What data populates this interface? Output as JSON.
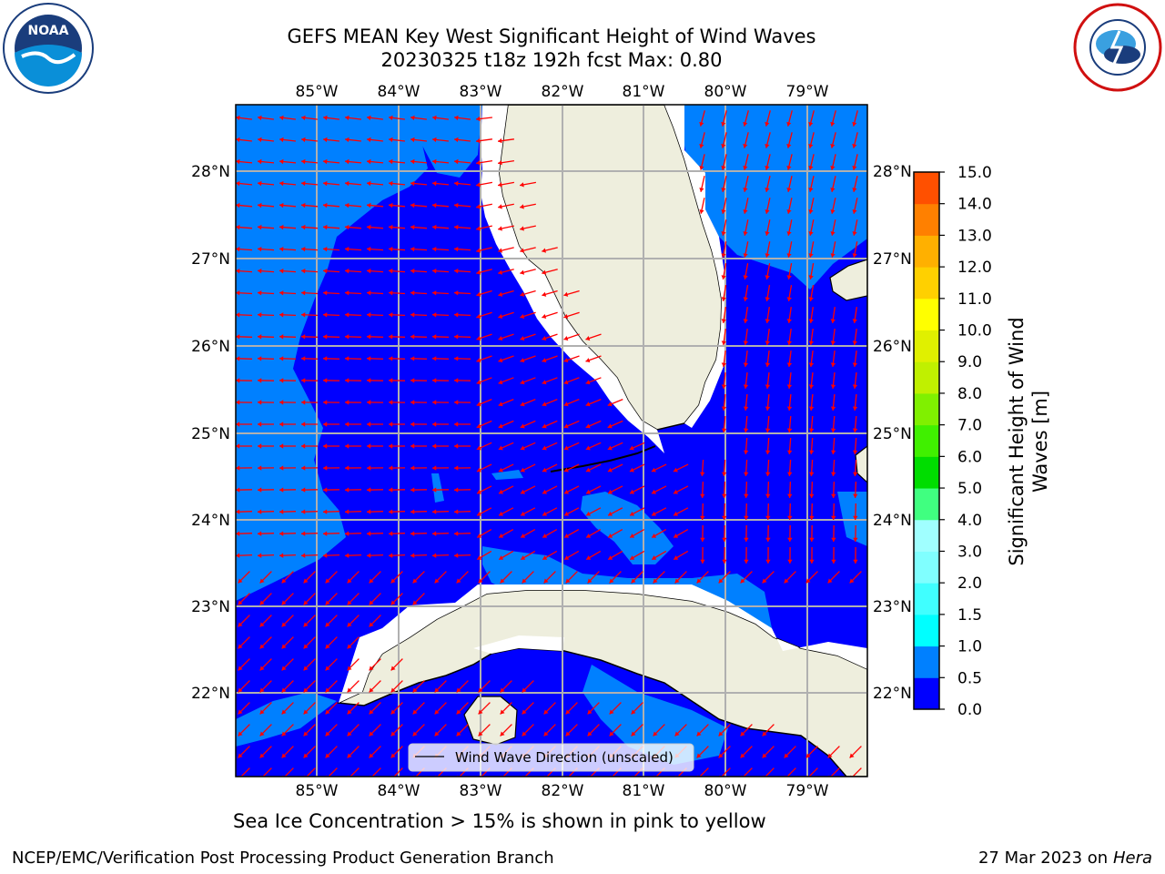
{
  "title_line1": "GEFS MEAN Key West Significant Height of Wind Waves",
  "title_line2": "20230325 t18z 192h fcst   Max: 0.80",
  "map": {
    "lon_labels": [
      "85°W",
      "84°W",
      "83°W",
      "82°W",
      "81°W",
      "80°W",
      "79°W"
    ],
    "lat_labels": [
      "28°N",
      "27°N",
      "26°N",
      "25°N",
      "24°N",
      "23°N",
      "22°N"
    ],
    "lon_range": [
      -86,
      -78.3
    ],
    "lat_range": [
      21,
      28.8
    ],
    "legend_text": "Wind Wave Direction (unscaled)"
  },
  "colorbar": {
    "label_line1": "Significant Height of Wind",
    "label_line2": "Waves [m]",
    "ticks": [
      "15.0",
      "14.0",
      "13.0",
      "12.0",
      "11.0",
      "10.0",
      "9.0",
      "8.0",
      "7.0",
      "6.0",
      "5.0",
      "4.0",
      "3.0",
      "2.0",
      "1.5",
      "1.0",
      "0.5",
      "0.0"
    ],
    "colors": [
      "#0000ff",
      "#0080ff",
      "#00ffff",
      "#40ffff",
      "#80ffff",
      "#a0ffff",
      "#40ff80",
      "#00dd00",
      "#40f000",
      "#80f000",
      "#c0f000",
      "#e0f000",
      "#ffff00",
      "#ffd000",
      "#ffb000",
      "#ff8000",
      "#ff5000",
      "#ff2000",
      "#ff0000"
    ]
  },
  "colors": {
    "deep_blue": "#0000ff",
    "mid_blue": "#0080ff",
    "land": "#eeeedd",
    "arrow": "#ff0000",
    "grid": "#b0b0b0"
  },
  "ice_note": "Sea Ice Concentration > 15% is shown in pink to yellow",
  "footer_left": "NCEP/EMC/Verification Post Processing Product Generation Branch",
  "footer_date": "27 Mar 2023 on",
  "footer_machine": "Hera",
  "logos": [
    "noaa-logo",
    "nws-logo"
  ]
}
